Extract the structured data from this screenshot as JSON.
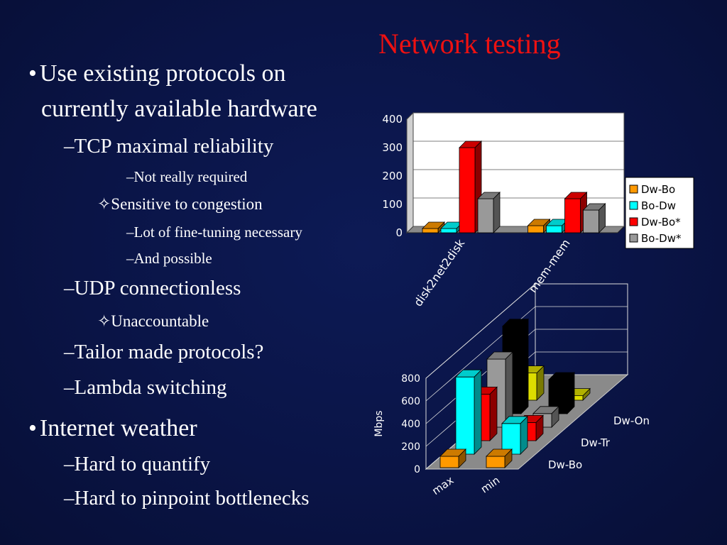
{
  "slide": {
    "title": "Network testing",
    "colors": {
      "background": "#0a1446",
      "title": "#ee1111",
      "text": "#ffffff"
    }
  },
  "bullets": [
    {
      "id": "b1",
      "level": 1,
      "marker": "•",
      "text": "Use existing protocols on"
    },
    {
      "id": "b1c",
      "level": 1,
      "marker": "",
      "text": "currently available hardware"
    },
    {
      "id": "b2",
      "level": 2,
      "marker": "–",
      "text": "TCP maximal reliability"
    },
    {
      "id": "b3",
      "level": 4,
      "marker": "–",
      "text": "Not really required"
    },
    {
      "id": "b4",
      "level": 3,
      "marker": "✧",
      "text": "Sensitive to congestion"
    },
    {
      "id": "b5",
      "level": 4,
      "marker": "–",
      "text": "Lot of fine-tuning necessary"
    },
    {
      "id": "b6",
      "level": 4,
      "marker": "–",
      "text": "And possible"
    },
    {
      "id": "b7",
      "level": 2,
      "marker": "–",
      "text": "UDP connectionless"
    },
    {
      "id": "b8",
      "level": 3,
      "marker": "✧",
      "text": "Unaccountable"
    },
    {
      "id": "b9",
      "level": 2,
      "marker": "–",
      "text": "Tailor made protocols?"
    },
    {
      "id": "b10",
      "level": 2,
      "marker": "–",
      "text": "Lambda switching"
    },
    {
      "id": "b11",
      "level": 1,
      "marker": "•",
      "text": "Internet weather"
    },
    {
      "id": "b12",
      "level": 2,
      "marker": "–",
      "text": "Hard to quantify"
    },
    {
      "id": "b13",
      "level": 2,
      "marker": "–",
      "text": "Hard to pinpoint bottlenecks"
    }
  ],
  "chart_data": [
    {
      "type": "bar",
      "categories": [
        "disk2net2disk",
        "mem-mem"
      ],
      "series": [
        {
          "name": "Dw-Bo",
          "color": "#ff9900",
          "values": [
            15,
            25
          ]
        },
        {
          "name": "Bo-Dw",
          "color": "#00ffff",
          "values": [
            15,
            25
          ]
        },
        {
          "name": "Dw-Bo*",
          "color": "#ff0000",
          "values": [
            300,
            120
          ]
        },
        {
          "name": "Bo-Dw*",
          "color": "#999999",
          "values": [
            120,
            80
          ]
        }
      ],
      "ylim": [
        0,
        400
      ],
      "yticks": [
        "0",
        "100",
        "200",
        "300",
        "400"
      ],
      "legend": "right",
      "style": "3d"
    },
    {
      "type": "bar",
      "categories": [
        "max",
        "min"
      ],
      "series": [
        {
          "name": "Dw-Bo",
          "values": [
            100,
            100
          ],
          "colors": [
            "#ff9900",
            "#ff9900"
          ]
        },
        {
          "name": "Dw-Tr",
          "values": [
            680,
            270
          ],
          "colors": [
            "#00ffff",
            "#00ffff"
          ]
        },
        {
          "name": "",
          "values": [
            410,
            160
          ],
          "colors": [
            "#ff0000",
            "#ff0000"
          ]
        },
        {
          "name": "",
          "values": [
            600,
            120
          ],
          "colors": [
            "#999999",
            "#999999"
          ]
        },
        {
          "name": "",
          "values": [
            770,
            300
          ],
          "colors": [
            "#000000",
            "#000000"
          ]
        },
        {
          "name": "",
          "values": [
            240,
            40
          ],
          "colors": [
            "#dddd00",
            "#dddd00"
          ]
        },
        {
          "name": "Dw-On",
          "values": [
            0,
            0
          ],
          "colors": [
            "#000000",
            "#000000"
          ]
        }
      ],
      "ylabel": "Mbps",
      "ylim": [
        0,
        800
      ],
      "yticks": [
        "0",
        "200",
        "400",
        "600",
        "800"
      ],
      "depth_labels": [
        "Dw-Bo",
        "Dw-Tr",
        "Dw-On"
      ],
      "style": "3d"
    }
  ]
}
